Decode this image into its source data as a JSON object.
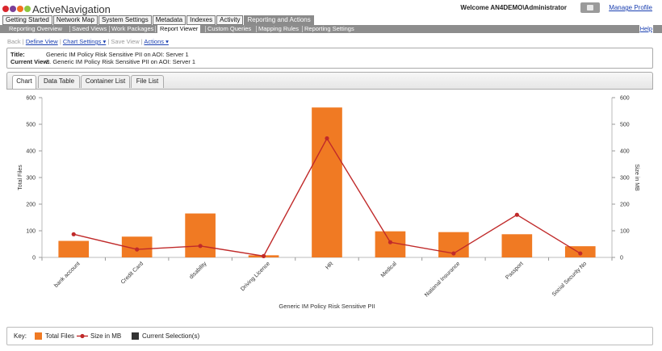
{
  "header": {
    "logo_text": "ActiveNavigation",
    "logo_dot_colors": [
      "#d9262d",
      "#7b3f98",
      "#f37021",
      "#8dc63f"
    ],
    "welcome": "Welcome AN4DEMO\\Administrator",
    "manage_profile": "Manage Profile"
  },
  "topnav": [
    "Getting Started",
    "Network Map",
    "System Settings",
    "Metadata",
    "Indexes",
    "Activity",
    "Reporting and Actions"
  ],
  "topnav_active": "Reporting and Actions",
  "subnav": [
    "Reporting Overview",
    "Saved Views",
    "Work Packages",
    "Report Viewer",
    "Custom Queries",
    "Mapping Rules",
    "Reporting Settings"
  ],
  "subnav_active": "Report Viewer",
  "help": "Help",
  "toolbar": {
    "back": "Back",
    "define_view": "Define View",
    "chart_settings": "Chart Settings",
    "save_view": "Save View",
    "actions": "Actions",
    "sep": "|",
    "caret": "▾"
  },
  "info": {
    "title_label": "Title:",
    "title_value": "Generic IM Policy Risk Sensitive PII on AOI: Server 1",
    "current_view_label": "Current View:",
    "current_view_value": "8. Generic IM Policy Risk Sensitive PII on AOI: Server 1"
  },
  "tabs": [
    "Chart",
    "Data Table",
    "Container List",
    "File List"
  ],
  "tabs_active": "Chart",
  "chart_data": {
    "type": "bar",
    "xlabel": "Generic IM Policy Risk Sensitive PII",
    "ylabel": "Total Files",
    "y2label": "Size in MB",
    "ylim": [
      0,
      600
    ],
    "y2lim": [
      0,
      600
    ],
    "yticks": [
      0,
      100,
      200,
      300,
      400,
      500,
      600
    ],
    "categories": [
      "bank account",
      "Credit Card",
      "disability",
      "Driving Licence",
      "HR",
      "Medical",
      "National Insurance",
      "Passport",
      "Social Security No"
    ],
    "series": [
      {
        "name": "Total Files",
        "type": "bar",
        "color": "#f07a23",
        "values": [
          62,
          78,
          165,
          8,
          563,
          98,
          95,
          87,
          42
        ]
      },
      {
        "name": "Size in MB",
        "type": "line",
        "color": "#c02a2a",
        "axis": "right",
        "values": [
          87,
          30,
          43,
          5,
          447,
          57,
          15,
          160,
          15
        ]
      }
    ],
    "grid": false
  },
  "key": {
    "label": "Key:",
    "items": [
      {
        "name": "Total Files",
        "color": "#f07a23",
        "shape": "square"
      },
      {
        "name": "Size in MB",
        "color": "#c02a2a",
        "shape": "line-dot"
      },
      {
        "name": "Current Selection(s)",
        "color": "#333333",
        "shape": "square"
      }
    ]
  }
}
